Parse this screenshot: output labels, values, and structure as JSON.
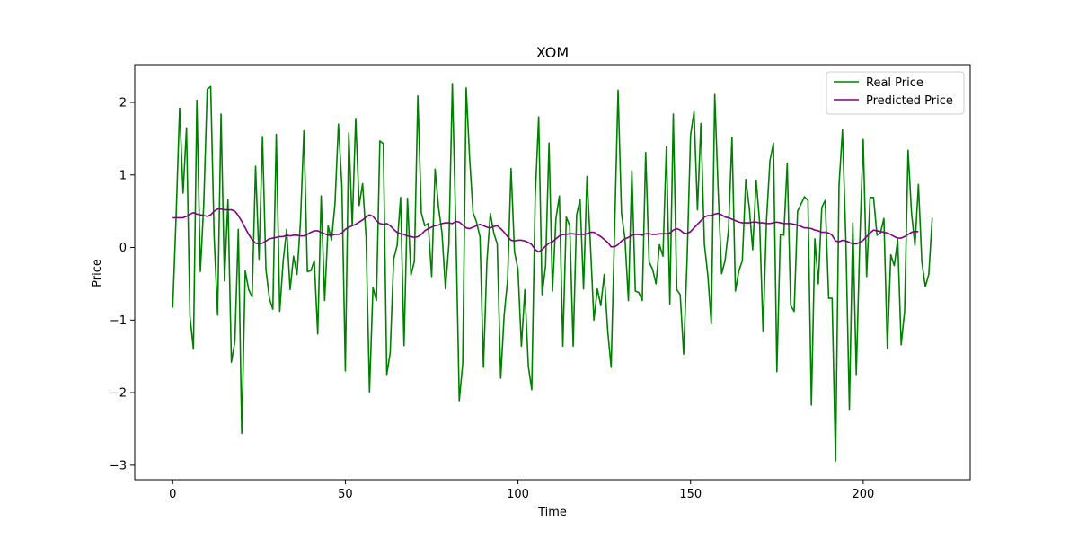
{
  "chart_data": {
    "type": "line",
    "title": "XOM",
    "xlabel": "Time",
    "ylabel": "Price",
    "xlim": [
      -11,
      231
    ],
    "ylim": [
      -3.2,
      2.52
    ],
    "xticks": [
      0,
      50,
      100,
      150,
      200
    ],
    "yticks": [
      -3,
      -2,
      -1,
      0,
      1,
      2
    ],
    "ytick_labels": [
      "−3",
      "−2",
      "−1",
      "0",
      "1",
      "2"
    ],
    "grid": false,
    "legend_position": "top-right",
    "colors": {
      "real": "#008000",
      "predicted": "#800080"
    },
    "series": [
      {
        "name": "Real Price",
        "color": "#008000",
        "values": [
          -0.83,
          0.45,
          1.92,
          0.75,
          1.65,
          -0.95,
          -1.4,
          2.03,
          -0.33,
          0.6,
          2.18,
          2.22,
          0.15,
          -0.93,
          1.84,
          -0.46,
          0.66,
          -1.58,
          -1.3,
          0.25,
          -2.56,
          -0.32,
          -0.58,
          -0.68,
          1.12,
          -0.16,
          1.53,
          -0.3,
          -0.7,
          -0.85,
          1.56,
          -0.88,
          -0.18,
          0.25,
          -0.58,
          -0.12,
          -0.37,
          0.35,
          1.61,
          -0.33,
          -0.32,
          -0.18,
          -1.19,
          0.71,
          -0.73,
          0.3,
          0.1,
          0.6,
          1.7,
          0.85,
          -1.7,
          1.58,
          0.3,
          1.78,
          0.58,
          0.88,
          0.15,
          -1.99,
          -0.55,
          -0.73,
          1.47,
          1.43,
          -1.75,
          -1.45,
          -0.16,
          0.03,
          0.69,
          -1.35,
          0.68,
          -0.38,
          -0.19,
          2.09,
          0.48,
          0.3,
          0.33,
          -0.4,
          1.08,
          0.55,
          0.2,
          -0.57,
          0.05,
          2.26,
          0.28,
          -2.11,
          -1.6,
          2.2,
          1.23,
          0.48,
          0.35,
          0.15,
          -1.65,
          -0.2,
          0.47,
          0.2,
          0.05,
          -1.8,
          -0.93,
          -0.45,
          1.09,
          -0.06,
          -0.3,
          -1.36,
          -0.58,
          -1.63,
          -1.96,
          0.7,
          1.8,
          -0.65,
          -0.25,
          1.44,
          -0.6,
          0.4,
          0.71,
          -1.36,
          0.42,
          0.3,
          -1.36,
          0.45,
          0.66,
          -0.57,
          0.98,
          0.03,
          -1.0,
          -0.57,
          -0.8,
          -0.37,
          -1.15,
          -1.65,
          0.25,
          2.17,
          0.47,
          0.12,
          -0.73,
          1.06,
          -0.6,
          -0.62,
          -0.73,
          1.31,
          -0.2,
          -0.3,
          -0.5,
          0.04,
          -0.12,
          1.39,
          -0.78,
          1.84,
          -0.58,
          -0.65,
          -1.47,
          -0.15,
          1.55,
          1.87,
          0.52,
          1.71,
          0.05,
          -0.38,
          -1.05,
          2.11,
          0.78,
          -0.36,
          -0.18,
          0.25,
          1.52,
          -0.6,
          -0.32,
          -0.18,
          0.94,
          0.55,
          -0.03,
          0.93,
          0.35,
          -1.16,
          0.38,
          1.2,
          1.44,
          -1.71,
          0.18,
          0.17,
          1.16,
          -0.8,
          -0.88,
          0.5,
          0.6,
          0.7,
          0.65,
          -2.17,
          0.12,
          -0.5,
          0.55,
          0.65,
          -0.7,
          -0.7,
          -2.94,
          0.86,
          1.62,
          0.06,
          -2.23,
          0.34,
          -1.75,
          0.05,
          1.49,
          -0.4,
          0.69,
          0.69,
          0.17,
          0.2,
          0.4,
          -1.39,
          -0.1,
          -0.25,
          0.11,
          -1.34,
          -0.88,
          1.34,
          0.48,
          0.03,
          0.87,
          -0.2,
          -0.54,
          -0.37,
          0.41
        ]
      },
      {
        "name": "Predicted Price",
        "color": "#800080",
        "values": [
          0.41,
          0.41,
          0.41,
          0.41,
          0.43,
          0.46,
          0.48,
          0.46,
          0.45,
          0.44,
          0.43,
          0.45,
          0.5,
          0.53,
          0.53,
          0.52,
          0.52,
          0.52,
          0.5,
          0.44,
          0.36,
          0.27,
          0.18,
          0.11,
          0.06,
          0.05,
          0.06,
          0.09,
          0.12,
          0.13,
          0.14,
          0.15,
          0.15,
          0.17,
          0.16,
          0.17,
          0.17,
          0.16,
          0.16,
          0.18,
          0.21,
          0.23,
          0.23,
          0.21,
          0.19,
          0.17,
          0.17,
          0.18,
          0.18,
          0.2,
          0.25,
          0.28,
          0.3,
          0.32,
          0.35,
          0.38,
          0.42,
          0.45,
          0.43,
          0.37,
          0.33,
          0.32,
          0.33,
          0.3,
          0.25,
          0.21,
          0.19,
          0.18,
          0.16,
          0.15,
          0.14,
          0.15,
          0.18,
          0.23,
          0.26,
          0.28,
          0.3,
          0.31,
          0.33,
          0.34,
          0.34,
          0.33,
          0.36,
          0.35,
          0.31,
          0.27,
          0.26,
          0.28,
          0.3,
          0.32,
          0.3,
          0.28,
          0.27,
          0.29,
          0.3,
          0.26,
          0.21,
          0.15,
          0.1,
          0.09,
          0.1,
          0.1,
          0.09,
          0.07,
          0.04,
          -0.03,
          -0.06,
          -0.03,
          0.02,
          0.06,
          0.08,
          0.12,
          0.16,
          0.18,
          0.18,
          0.19,
          0.19,
          0.18,
          0.18,
          0.18,
          0.19,
          0.21,
          0.21,
          0.18,
          0.15,
          0.11,
          0.07,
          0.01,
          0.01,
          0.04,
          0.09,
          0.12,
          0.14,
          0.17,
          0.18,
          0.18,
          0.17,
          0.19,
          0.19,
          0.18,
          0.18,
          0.19,
          0.19,
          0.19,
          0.2,
          0.24,
          0.26,
          0.24,
          0.2,
          0.19,
          0.22,
          0.27,
          0.32,
          0.37,
          0.42,
          0.44,
          0.44,
          0.46,
          0.47,
          0.45,
          0.42,
          0.41,
          0.39,
          0.37,
          0.35,
          0.34,
          0.34,
          0.34,
          0.35,
          0.35,
          0.34,
          0.34,
          0.33,
          0.33,
          0.34,
          0.35,
          0.34,
          0.33,
          0.33,
          0.33,
          0.32,
          0.31,
          0.29,
          0.27,
          0.27,
          0.26,
          0.24,
          0.23,
          0.21,
          0.21,
          0.2,
          0.17,
          0.09,
          0.08,
          0.1,
          0.09,
          0.07,
          0.05,
          0.05,
          0.07,
          0.1,
          0.15,
          0.2,
          0.24,
          0.23,
          0.22,
          0.21,
          0.2,
          0.18,
          0.15,
          0.13,
          0.13,
          0.15,
          0.18,
          0.21,
          0.22,
          0.22
        ]
      }
    ]
  }
}
